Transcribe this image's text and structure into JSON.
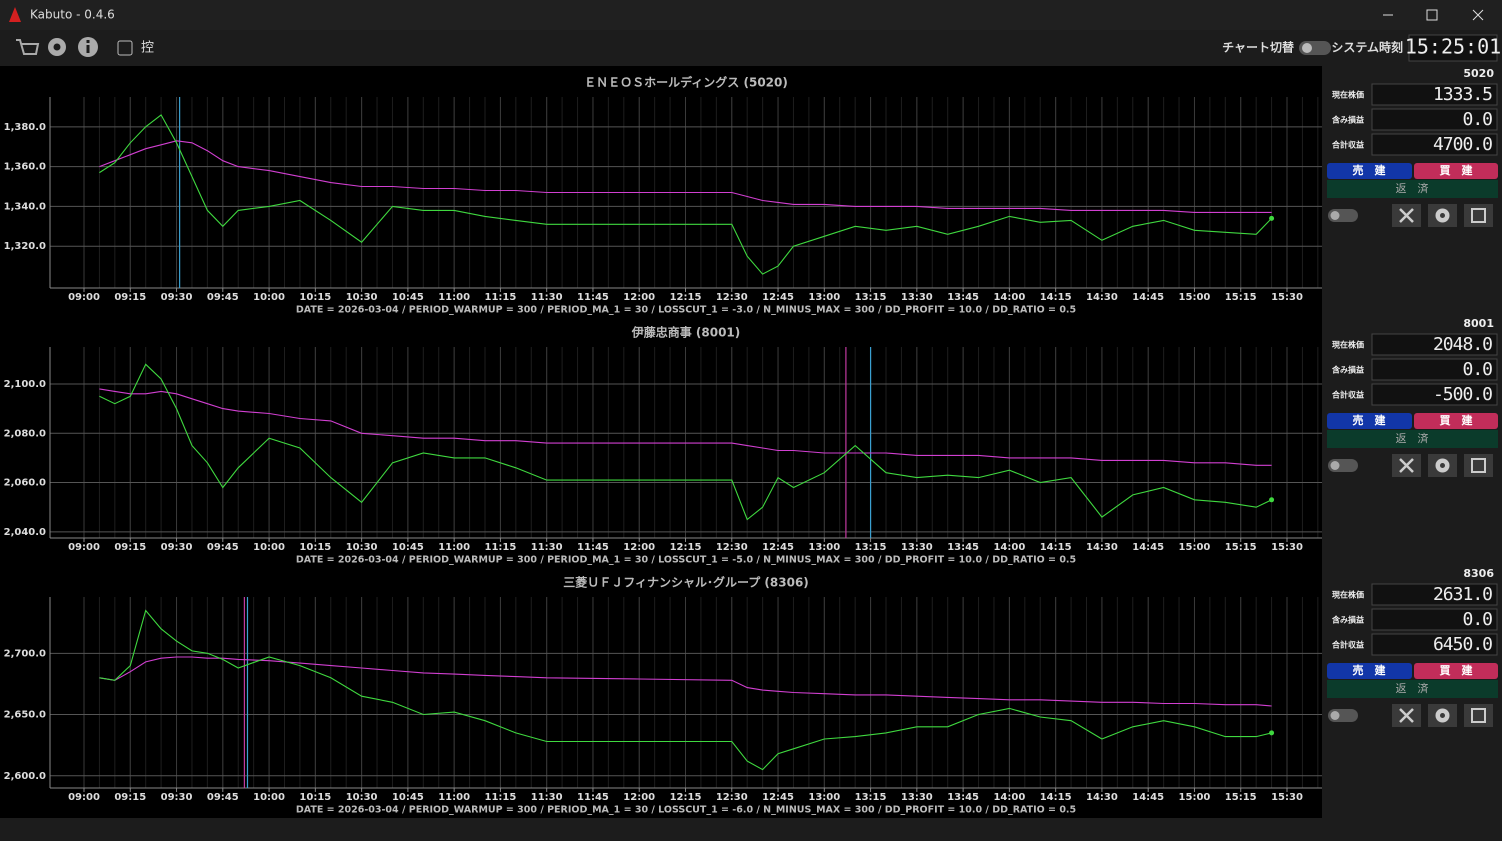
{
  "window": {
    "title": "Kabuto - 0.4.6"
  },
  "toolbar": {
    "checkbox_label": "控",
    "chart_switch": "チャート切替",
    "clock_label": "システム時刻",
    "clock": "15:25:01"
  },
  "chart_data": [
    {
      "type": "line",
      "title": "ＥＮＥＯＳホールディングス (5020)",
      "note": "DATE = 2026-03-04 / PERIOD_WARMUP = 300 / PERIOD_MA_1 = 30 / LOSSCUT_1 = -3.0 / N_MINUS_MAX = 300 / DD_PROFIT = 10.0 / DD_RATIO = 0.5",
      "x": [
        "09:05",
        "09:10",
        "09:15",
        "09:20",
        "09:25",
        "09:30",
        "09:35",
        "09:40",
        "09:45",
        "09:50",
        "10:00",
        "10:10",
        "10:20",
        "10:30",
        "10:40",
        "10:50",
        "11:00",
        "11:10",
        "11:20",
        "11:30",
        "12:00",
        "12:30",
        "12:35",
        "12:40",
        "12:45",
        "12:50",
        "13:00",
        "13:10",
        "13:20",
        "13:30",
        "13:40",
        "13:50",
        "14:00",
        "14:10",
        "14:20",
        "14:30",
        "14:40",
        "14:50",
        "15:00",
        "15:10",
        "15:20",
        "15:25"
      ],
      "series": [
        {
          "color": "#3fd83f",
          "values": [
            1357,
            1362,
            1372,
            1380,
            1386,
            1372,
            1355,
            1338,
            1330,
            1338,
            1340,
            1343,
            1333,
            1322,
            1340,
            1338,
            1338,
            1335,
            1333,
            1331,
            1331,
            1331,
            1315,
            1306,
            1310,
            1320,
            1325,
            1330,
            1328,
            1330,
            1326,
            1330,
            1335,
            1332,
            1333,
            1323,
            1330,
            1333,
            1328,
            1327,
            1326,
            1334
          ]
        },
        {
          "color": "#d13fd1",
          "values": [
            1360,
            1363,
            1366,
            1369,
            1371,
            1373,
            1372,
            1368,
            1363,
            1360,
            1358,
            1355,
            1352,
            1350,
            1350,
            1349,
            1349,
            1348,
            1348,
            1347,
            1347,
            1347,
            1345,
            1343,
            1342,
            1341,
            1341,
            1340,
            1340,
            1340,
            1339,
            1339,
            1339,
            1339,
            1338,
            1338,
            1338,
            1338,
            1337,
            1337,
            1337,
            1337
          ]
        }
      ],
      "vlines": [
        {
          "x": "09:31",
          "color": "#3a9fd0"
        }
      ],
      "xlim": [
        "09:00",
        "15:30"
      ],
      "xticks": [
        "09:00",
        "09:15",
        "09:30",
        "09:45",
        "10:00",
        "10:15",
        "10:30",
        "10:45",
        "11:00",
        "11:15",
        "11:30",
        "11:45",
        "12:00",
        "12:15",
        "12:30",
        "12:45",
        "13:00",
        "13:15",
        "13:30",
        "13:45",
        "14:00",
        "14:15",
        "14:30",
        "14:45",
        "15:00",
        "15:15",
        "15:30"
      ],
      "ylim": [
        1299,
        1395
      ],
      "yticks": [
        {
          "value": 1320,
          "label": "1,320.0"
        },
        {
          "value": 1340,
          "label": "1,340.0"
        },
        {
          "value": 1360,
          "label": "1,360.0"
        },
        {
          "value": 1380,
          "label": "1,380.0"
        }
      ],
      "grid": true
    },
    {
      "type": "line",
      "title": "伊藤忠商事 (8001)",
      "note": "DATE = 2026-03-04 / PERIOD_WARMUP = 300 / PERIOD_MA_1 = 30 / LOSSCUT_1 = -5.0 / N_MINUS_MAX = 300 / DD_PROFIT = 10.0 / DD_RATIO = 0.5",
      "x": [
        "09:05",
        "09:10",
        "09:15",
        "09:20",
        "09:25",
        "09:30",
        "09:35",
        "09:40",
        "09:45",
        "09:50",
        "10:00",
        "10:10",
        "10:20",
        "10:30",
        "10:40",
        "10:50",
        "11:00",
        "11:10",
        "11:20",
        "11:30",
        "12:00",
        "12:30",
        "12:35",
        "12:40",
        "12:45",
        "12:50",
        "13:00",
        "13:10",
        "13:20",
        "13:30",
        "13:40",
        "13:50",
        "14:00",
        "14:10",
        "14:20",
        "14:30",
        "14:40",
        "14:50",
        "15:00",
        "15:10",
        "15:20",
        "15:25"
      ],
      "series": [
        {
          "color": "#3fd83f",
          "values": [
            2095,
            2092,
            2095,
            2108,
            2102,
            2090,
            2075,
            2068,
            2058,
            2066,
            2078,
            2074,
            2062,
            2052,
            2068,
            2072,
            2070,
            2070,
            2066,
            2061,
            2061,
            2061,
            2045,
            2050,
            2062,
            2058,
            2064,
            2075,
            2064,
            2062,
            2063,
            2062,
            2065,
            2060,
            2062,
            2046,
            2055,
            2058,
            2053,
            2052,
            2050,
            2053
          ]
        },
        {
          "color": "#d13fd1",
          "values": [
            2098,
            2097,
            2096,
            2096,
            2097,
            2096,
            2094,
            2092,
            2090,
            2089,
            2088,
            2086,
            2085,
            2080,
            2079,
            2078,
            2078,
            2077,
            2077,
            2076,
            2076,
            2076,
            2075,
            2074,
            2073,
            2073,
            2072,
            2072,
            2072,
            2071,
            2071,
            2071,
            2070,
            2070,
            2070,
            2069,
            2069,
            2069,
            2068,
            2068,
            2067,
            2067
          ]
        }
      ],
      "vlines": [
        {
          "x": "13:07",
          "color": "#c03aa0"
        },
        {
          "x": "13:15",
          "color": "#3a9fd0"
        }
      ],
      "xlim": [
        "09:00",
        "15:30"
      ],
      "xticks": [
        "09:00",
        "09:15",
        "09:30",
        "09:45",
        "10:00",
        "10:15",
        "10:30",
        "10:45",
        "11:00",
        "11:15",
        "11:30",
        "11:45",
        "12:00",
        "12:15",
        "12:30",
        "12:45",
        "13:00",
        "13:15",
        "13:30",
        "13:45",
        "14:00",
        "14:15",
        "14:30",
        "14:45",
        "15:00",
        "15:15",
        "15:30"
      ],
      "ylim": [
        2037.5,
        2115
      ],
      "yticks": [
        {
          "value": 2040,
          "label": "2,040.0"
        },
        {
          "value": 2060,
          "label": "2,060.0"
        },
        {
          "value": 2080,
          "label": "2,080.0"
        },
        {
          "value": 2100,
          "label": "2,100.0"
        }
      ],
      "grid": true
    },
    {
      "type": "line",
      "title": "三菱ＵＦＪフィナンシャル･グループ (8306)",
      "note": "DATE = 2026-03-04 / PERIOD_WARMUP = 300 / PERIOD_MA_1 = 30 / LOSSCUT_1 = -6.0 / N_MINUS_MAX = 300 / DD_PROFIT = 10.0 / DD_RATIO = 0.5",
      "x": [
        "09:05",
        "09:10",
        "09:15",
        "09:20",
        "09:25",
        "09:30",
        "09:35",
        "09:40",
        "09:45",
        "09:50",
        "10:00",
        "10:10",
        "10:20",
        "10:30",
        "10:40",
        "10:50",
        "11:00",
        "11:10",
        "11:20",
        "11:30",
        "12:00",
        "12:30",
        "12:35",
        "12:40",
        "12:45",
        "12:50",
        "13:00",
        "13:10",
        "13:20",
        "13:30",
        "13:40",
        "13:50",
        "14:00",
        "14:10",
        "14:20",
        "14:30",
        "14:40",
        "14:50",
        "15:00",
        "15:10",
        "15:20",
        "15:25"
      ],
      "series": [
        {
          "color": "#3fd83f",
          "values": [
            2680,
            2678,
            2690,
            2735,
            2720,
            2710,
            2702,
            2700,
            2695,
            2688,
            2697,
            2690,
            2680,
            2665,
            2660,
            2650,
            2652,
            2645,
            2635,
            2628,
            2628,
            2628,
            2612,
            2605,
            2618,
            2622,
            2630,
            2632,
            2635,
            2640,
            2640,
            2650,
            2655,
            2648,
            2645,
            2630,
            2640,
            2645,
            2640,
            2632,
            2632,
            2635
          ]
        },
        {
          "color": "#d13fd1",
          "values": [
            2680,
            2678,
            2685,
            2693,
            2696,
            2697,
            2697,
            2696,
            2696,
            2695,
            2694,
            2692,
            2690,
            2688,
            2686,
            2684,
            2683,
            2682,
            2681,
            2680,
            2679,
            2678,
            2672,
            2670,
            2669,
            2668,
            2667,
            2666,
            2666,
            2665,
            2664,
            2663,
            2662,
            2662,
            2661,
            2660,
            2660,
            2659,
            2659,
            2658,
            2658,
            2657
          ]
        }
      ],
      "vlines": [
        {
          "x": "09:52",
          "color": "#c03aa0"
        },
        {
          "x": "09:53",
          "color": "#3a9fd0"
        }
      ],
      "xlim": [
        "09:00",
        "15:30"
      ],
      "xticks": [
        "09:00",
        "09:15",
        "09:30",
        "09:45",
        "10:00",
        "10:15",
        "10:30",
        "10:45",
        "11:00",
        "11:15",
        "11:30",
        "11:45",
        "12:00",
        "12:15",
        "12:30",
        "12:45",
        "13:00",
        "13:15",
        "13:30",
        "13:45",
        "14:00",
        "14:15",
        "14:30",
        "14:45",
        "15:00",
        "15:15",
        "15:30"
      ],
      "ylim": [
        2590,
        2746
      ],
      "yticks": [
        {
          "value": 2600,
          "label": "2,600.0"
        },
        {
          "value": 2650,
          "label": "2,650.0"
        },
        {
          "value": 2700,
          "label": "2,700.0"
        }
      ],
      "grid": true
    }
  ],
  "panels": [
    {
      "code": "5020",
      "rows": [
        [
          "現在株価",
          "1333.5"
        ],
        [
          "含み損益",
          "0.0"
        ],
        [
          "合計収益",
          "4700.0"
        ]
      ],
      "sell": "売　建",
      "buy": "買　建",
      "repay": "返　済"
    },
    {
      "code": "8001",
      "rows": [
        [
          "現在株価",
          "2048.0"
        ],
        [
          "含み損益",
          "0.0"
        ],
        [
          "合計収益",
          "-500.0"
        ]
      ],
      "sell": "売　建",
      "buy": "買　建",
      "repay": "返　済"
    },
    {
      "code": "8306",
      "rows": [
        [
          "現在株価",
          "2631.0"
        ],
        [
          "含み損益",
          "0.0"
        ],
        [
          "合計収益",
          "6450.0"
        ]
      ],
      "sell": "売　建",
      "buy": "買　建",
      "repay": "返　済"
    }
  ]
}
